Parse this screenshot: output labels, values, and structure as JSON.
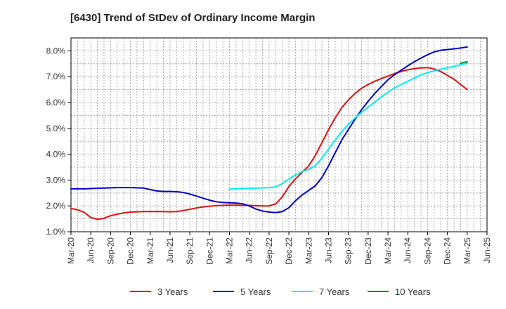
{
  "chart_data": {
    "type": "line",
    "title": "[6430]  Trend of StDev of Ordinary Income Margin",
    "xlabel": "",
    "ylabel": "",
    "ylim": [
      1.0,
      8.5
    ],
    "y_ticks": [
      1.0,
      2.0,
      3.0,
      4.0,
      5.0,
      6.0,
      7.0,
      8.0
    ],
    "y_tick_labels": [
      "1.0%",
      "2.0%",
      "3.0%",
      "4.0%",
      "5.0%",
      "6.0%",
      "7.0%",
      "8.0%"
    ],
    "x_tick_labels": [
      "Mar-20",
      "Jun-20",
      "Sep-20",
      "Dec-20",
      "Mar-21",
      "Jun-21",
      "Sep-21",
      "Dec-21",
      "Mar-22",
      "Jun-22",
      "Sep-22",
      "Dec-22",
      "Mar-23",
      "Jun-23",
      "Sep-23",
      "Dec-23",
      "Mar-24",
      "Jun-24",
      "Sep-24",
      "Dec-24",
      "Mar-25",
      "Jun-25"
    ],
    "grid": true,
    "legend_position": "bottom",
    "series": [
      {
        "name": "3 Years",
        "color": "#dd1111",
        "x": [
          "Mar-20",
          "Apr-20",
          "May-20",
          "Jun-20",
          "Jul-20",
          "Aug-20",
          "Sep-20",
          "Oct-20",
          "Nov-20",
          "Dec-20",
          "Jan-21",
          "Feb-21",
          "Mar-21",
          "Apr-21",
          "May-21",
          "Jun-21",
          "Jul-21",
          "Aug-21",
          "Sep-21",
          "Oct-21",
          "Nov-21",
          "Dec-21",
          "Jan-22",
          "Feb-22",
          "Mar-22",
          "Apr-22",
          "May-22",
          "Jun-22",
          "Jul-22",
          "Aug-22",
          "Sep-22",
          "Oct-22",
          "Nov-22",
          "Dec-22",
          "Jan-23",
          "Feb-23",
          "Mar-23",
          "Apr-23",
          "May-23",
          "Jun-23",
          "Jul-23",
          "Aug-23",
          "Sep-23",
          "Oct-23",
          "Nov-23",
          "Dec-23",
          "Jan-24",
          "Feb-24",
          "Mar-24",
          "Apr-24",
          "May-24",
          "Jun-24",
          "Jul-24",
          "Aug-24",
          "Sep-24",
          "Oct-24",
          "Nov-24",
          "Dec-24",
          "Jan-25",
          "Feb-25",
          "Mar-25"
        ],
        "values": [
          1.9,
          1.85,
          1.75,
          1.55,
          1.48,
          1.52,
          1.62,
          1.68,
          1.73,
          1.76,
          1.77,
          1.78,
          1.78,
          1.78,
          1.78,
          1.77,
          1.78,
          1.82,
          1.87,
          1.92,
          1.96,
          1.99,
          2.01,
          2.02,
          2.03,
          2.03,
          2.02,
          2.02,
          2.01,
          2.0,
          2.0,
          2.08,
          2.35,
          2.75,
          3.05,
          3.3,
          3.55,
          3.95,
          4.45,
          4.95,
          5.4,
          5.8,
          6.1,
          6.35,
          6.55,
          6.7,
          6.82,
          6.93,
          7.02,
          7.12,
          7.2,
          7.27,
          7.31,
          7.34,
          7.35,
          7.3,
          7.2,
          7.05,
          6.9,
          6.7,
          6.5
        ]
      },
      {
        "name": "5 Years",
        "color": "#0000cc",
        "x": [
          "Mar-20",
          "Apr-20",
          "May-20",
          "Jun-20",
          "Jul-20",
          "Aug-20",
          "Sep-20",
          "Oct-20",
          "Nov-20",
          "Dec-20",
          "Jan-21",
          "Feb-21",
          "Mar-21",
          "Apr-21",
          "May-21",
          "Jun-21",
          "Jul-21",
          "Aug-21",
          "Sep-21",
          "Oct-21",
          "Nov-21",
          "Dec-21",
          "Jan-22",
          "Feb-22",
          "Mar-22",
          "Apr-22",
          "May-22",
          "Jun-22",
          "Jul-22",
          "Aug-22",
          "Sep-22",
          "Oct-22",
          "Nov-22",
          "Dec-22",
          "Jan-23",
          "Feb-23",
          "Mar-23",
          "Apr-23",
          "May-23",
          "Jun-23",
          "Jul-23",
          "Aug-23",
          "Sep-23",
          "Oct-23",
          "Nov-23",
          "Dec-23",
          "Jan-24",
          "Feb-24",
          "Mar-24",
          "Apr-24",
          "May-24",
          "Jun-24",
          "Jul-24",
          "Aug-24",
          "Sep-24",
          "Oct-24",
          "Nov-24",
          "Dec-24",
          "Jan-25",
          "Feb-25",
          "Mar-25"
        ],
        "values": [
          2.66,
          2.66,
          2.66,
          2.67,
          2.68,
          2.69,
          2.7,
          2.71,
          2.71,
          2.71,
          2.7,
          2.69,
          2.63,
          2.58,
          2.56,
          2.56,
          2.55,
          2.52,
          2.46,
          2.38,
          2.3,
          2.22,
          2.16,
          2.13,
          2.12,
          2.11,
          2.08,
          2.0,
          1.88,
          1.8,
          1.76,
          1.74,
          1.78,
          1.93,
          2.2,
          2.42,
          2.6,
          2.78,
          3.1,
          3.55,
          4.05,
          4.55,
          4.95,
          5.35,
          5.72,
          6.05,
          6.35,
          6.62,
          6.88,
          7.08,
          7.25,
          7.42,
          7.58,
          7.72,
          7.85,
          7.96,
          8.02,
          8.05,
          8.08,
          8.11,
          8.15
        ]
      },
      {
        "name": "7 Years",
        "color": "#00eeee",
        "x": [
          "Mar-22",
          "Apr-22",
          "May-22",
          "Jun-22",
          "Jul-22",
          "Aug-22",
          "Sep-22",
          "Oct-22",
          "Nov-22",
          "Dec-22",
          "Jan-23",
          "Feb-23",
          "Mar-23",
          "Apr-23",
          "May-23",
          "Jun-23",
          "Jul-23",
          "Aug-23",
          "Sep-23",
          "Oct-23",
          "Nov-23",
          "Dec-23",
          "Jan-24",
          "Feb-24",
          "Mar-24",
          "Apr-24",
          "May-24",
          "Jun-24",
          "Jul-24",
          "Aug-24",
          "Sep-24",
          "Oct-24",
          "Nov-24",
          "Dec-24",
          "Jan-25",
          "Feb-25",
          "Mar-25"
        ],
        "values": [
          2.65,
          2.66,
          2.67,
          2.68,
          2.69,
          2.7,
          2.71,
          2.74,
          2.86,
          3.04,
          3.2,
          3.32,
          3.42,
          3.55,
          3.85,
          4.2,
          4.55,
          4.88,
          5.15,
          5.4,
          5.62,
          5.82,
          6.02,
          6.22,
          6.4,
          6.57,
          6.7,
          6.82,
          6.95,
          7.07,
          7.16,
          7.23,
          7.29,
          7.34,
          7.4,
          7.46,
          7.52
        ]
      },
      {
        "name": "10 Years",
        "color": "#118811",
        "x": [
          "Feb-25",
          "Mar-25"
        ],
        "values": [
          7.52,
          7.58
        ]
      }
    ]
  }
}
